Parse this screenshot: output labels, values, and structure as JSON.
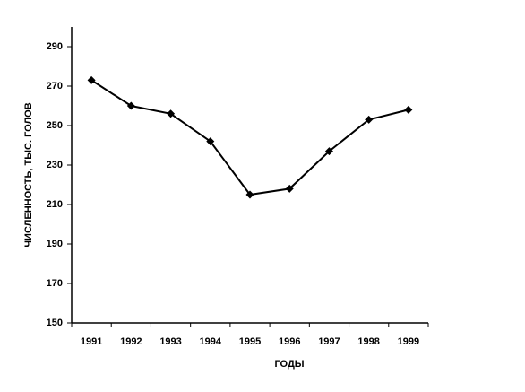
{
  "chart_data": {
    "type": "line",
    "categories": [
      "1991",
      "1992",
      "1993",
      "1994",
      "1995",
      "1996",
      "1997",
      "1998",
      "1999"
    ],
    "values": [
      273,
      260,
      256,
      242,
      215,
      218,
      237,
      253,
      258
    ],
    "color": "#000000",
    "xlabel": "ГОДЫ",
    "ylabel": "ЧИСЛЕННОСТЬ, ТЫС. ГОЛОВ",
    "ylim": [
      150,
      300
    ],
    "yticks": [
      150,
      170,
      190,
      210,
      230,
      250,
      270,
      290
    ],
    "grid": false
  }
}
